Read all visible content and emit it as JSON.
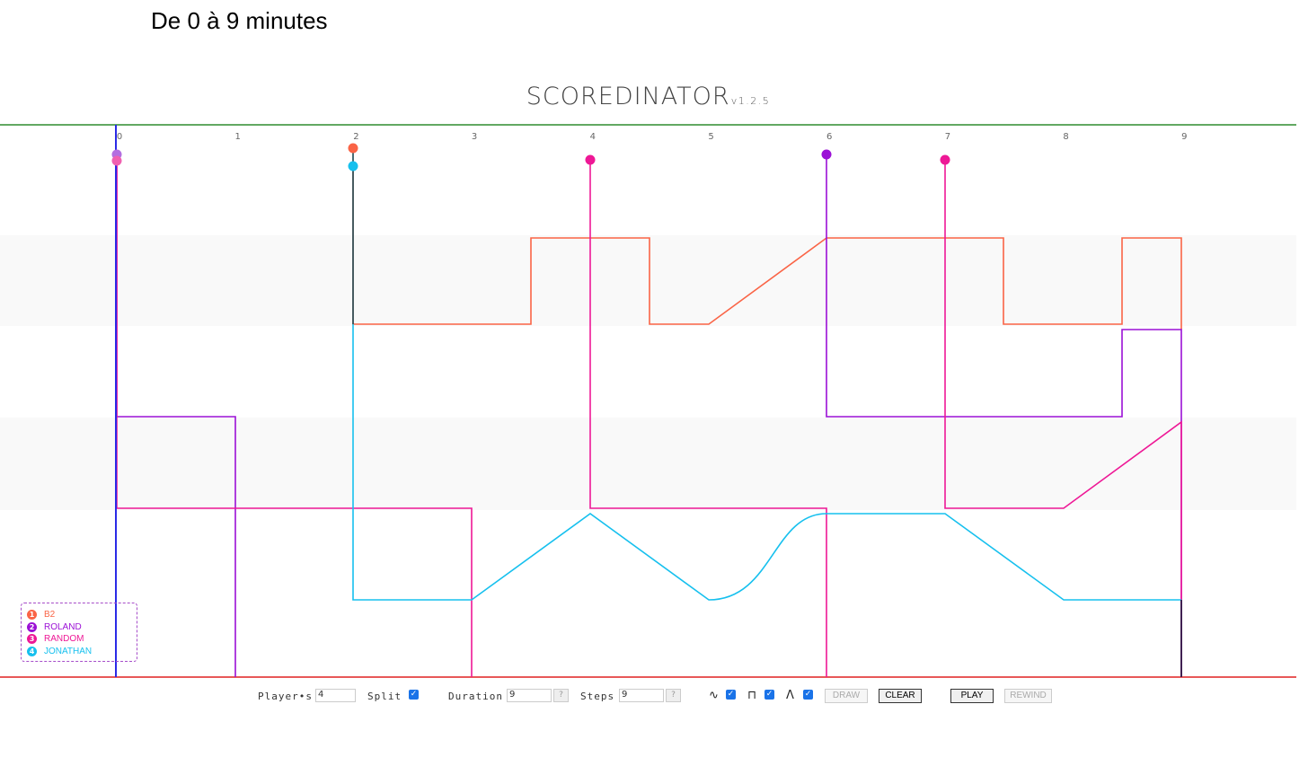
{
  "caption": "De 0 à 9 minutes",
  "app": {
    "title": "SCOREDINATOR",
    "version": "v1.2.5"
  },
  "timeline": {
    "duration": 9,
    "tick_labels": [
      "0",
      "1",
      "2",
      "3",
      "4",
      "5",
      "6",
      "7",
      "8",
      "9"
    ]
  },
  "players": [
    {
      "num": "1",
      "name": "B2",
      "color": "#fa6446"
    },
    {
      "num": "2",
      "name": "ROLAND",
      "color": "#9b10d6"
    },
    {
      "num": "3",
      "name": "RANDOM",
      "color": "#ee1896"
    },
    {
      "num": "4",
      "name": "JONATHAN",
      "color": "#16c0ee"
    }
  ],
  "colors": {
    "top_line": "#2e8b2e",
    "bottom_line": "#e02020",
    "band": "#f9f9f9",
    "cursor": "#2a2ae6",
    "end_line": "#1a1a3a"
  },
  "controls": {
    "players_label": "Player•s",
    "players_value": "4",
    "split_label": "Split",
    "split_checked": true,
    "duration_label": "Duration",
    "duration_value": "9",
    "steps_label": "Steps",
    "steps_value": "9",
    "help": "?",
    "curve_symbol": "∿",
    "square_symbol": "⊓",
    "triangle_symbol": "Λ",
    "draw_label": "DRAW",
    "clear_label": "CLEAR",
    "play_label": "PLAY",
    "rewind_label": "REWIND"
  }
}
